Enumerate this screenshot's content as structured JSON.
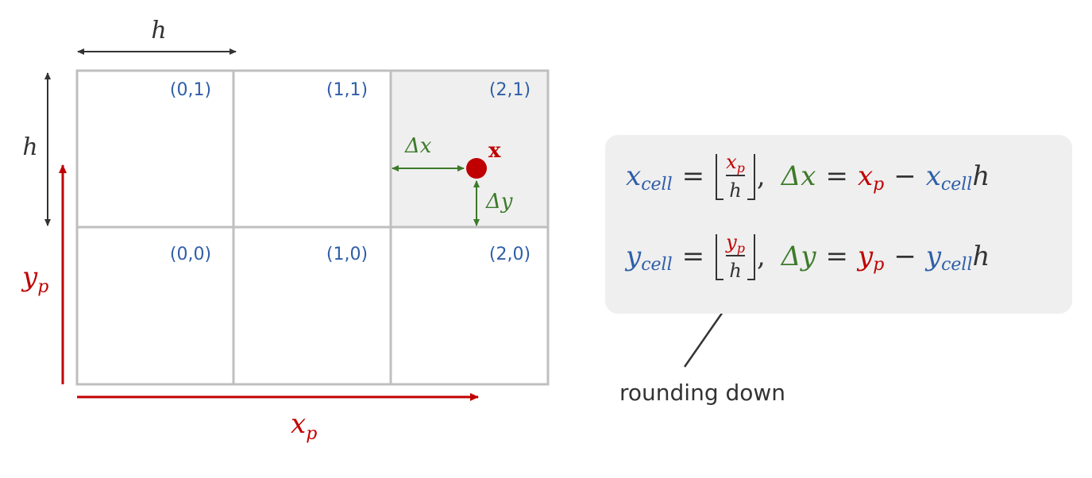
{
  "grid": {
    "cell_labels": [
      "(0,1)",
      "(1,1)",
      "(2,1)",
      "(0,0)",
      "(1,0)",
      "(2,0)"
    ],
    "highlighted_cell": "(2,1)"
  },
  "labels": {
    "h_top": "h",
    "h_left": "h",
    "xp_main": "x",
    "xp_sub": "p",
    "yp_main": "y",
    "yp_sub": "p",
    "point": "x",
    "dx": "Δx",
    "dy": "Δy"
  },
  "formulas": {
    "line1": {
      "lhs": "x",
      "lhs_sub": "cell",
      "eq": "=",
      "num": "x",
      "num_sub": "p",
      "den": "h",
      "delta": "Δx",
      "eq2": "=",
      "a": "x",
      "a_sub": "p",
      "minus": "−",
      "b": "x",
      "b_sub": "cell",
      "c": "h"
    },
    "line2": {
      "lhs": "y",
      "lhs_sub": "cell",
      "eq": "=",
      "num": "y",
      "num_sub": "p",
      "den": "h",
      "delta": "Δy",
      "eq2": "=",
      "a": "y",
      "a_sub": "p",
      "minus": "−",
      "b": "y",
      "b_sub": "cell",
      "c": "h"
    }
  },
  "note": "rounding down",
  "colors": {
    "blue": "#2e5ea8",
    "red": "#c00000",
    "green": "#3d7a2a",
    "grid": "#bfbfbf",
    "highlight": "#efefef"
  }
}
